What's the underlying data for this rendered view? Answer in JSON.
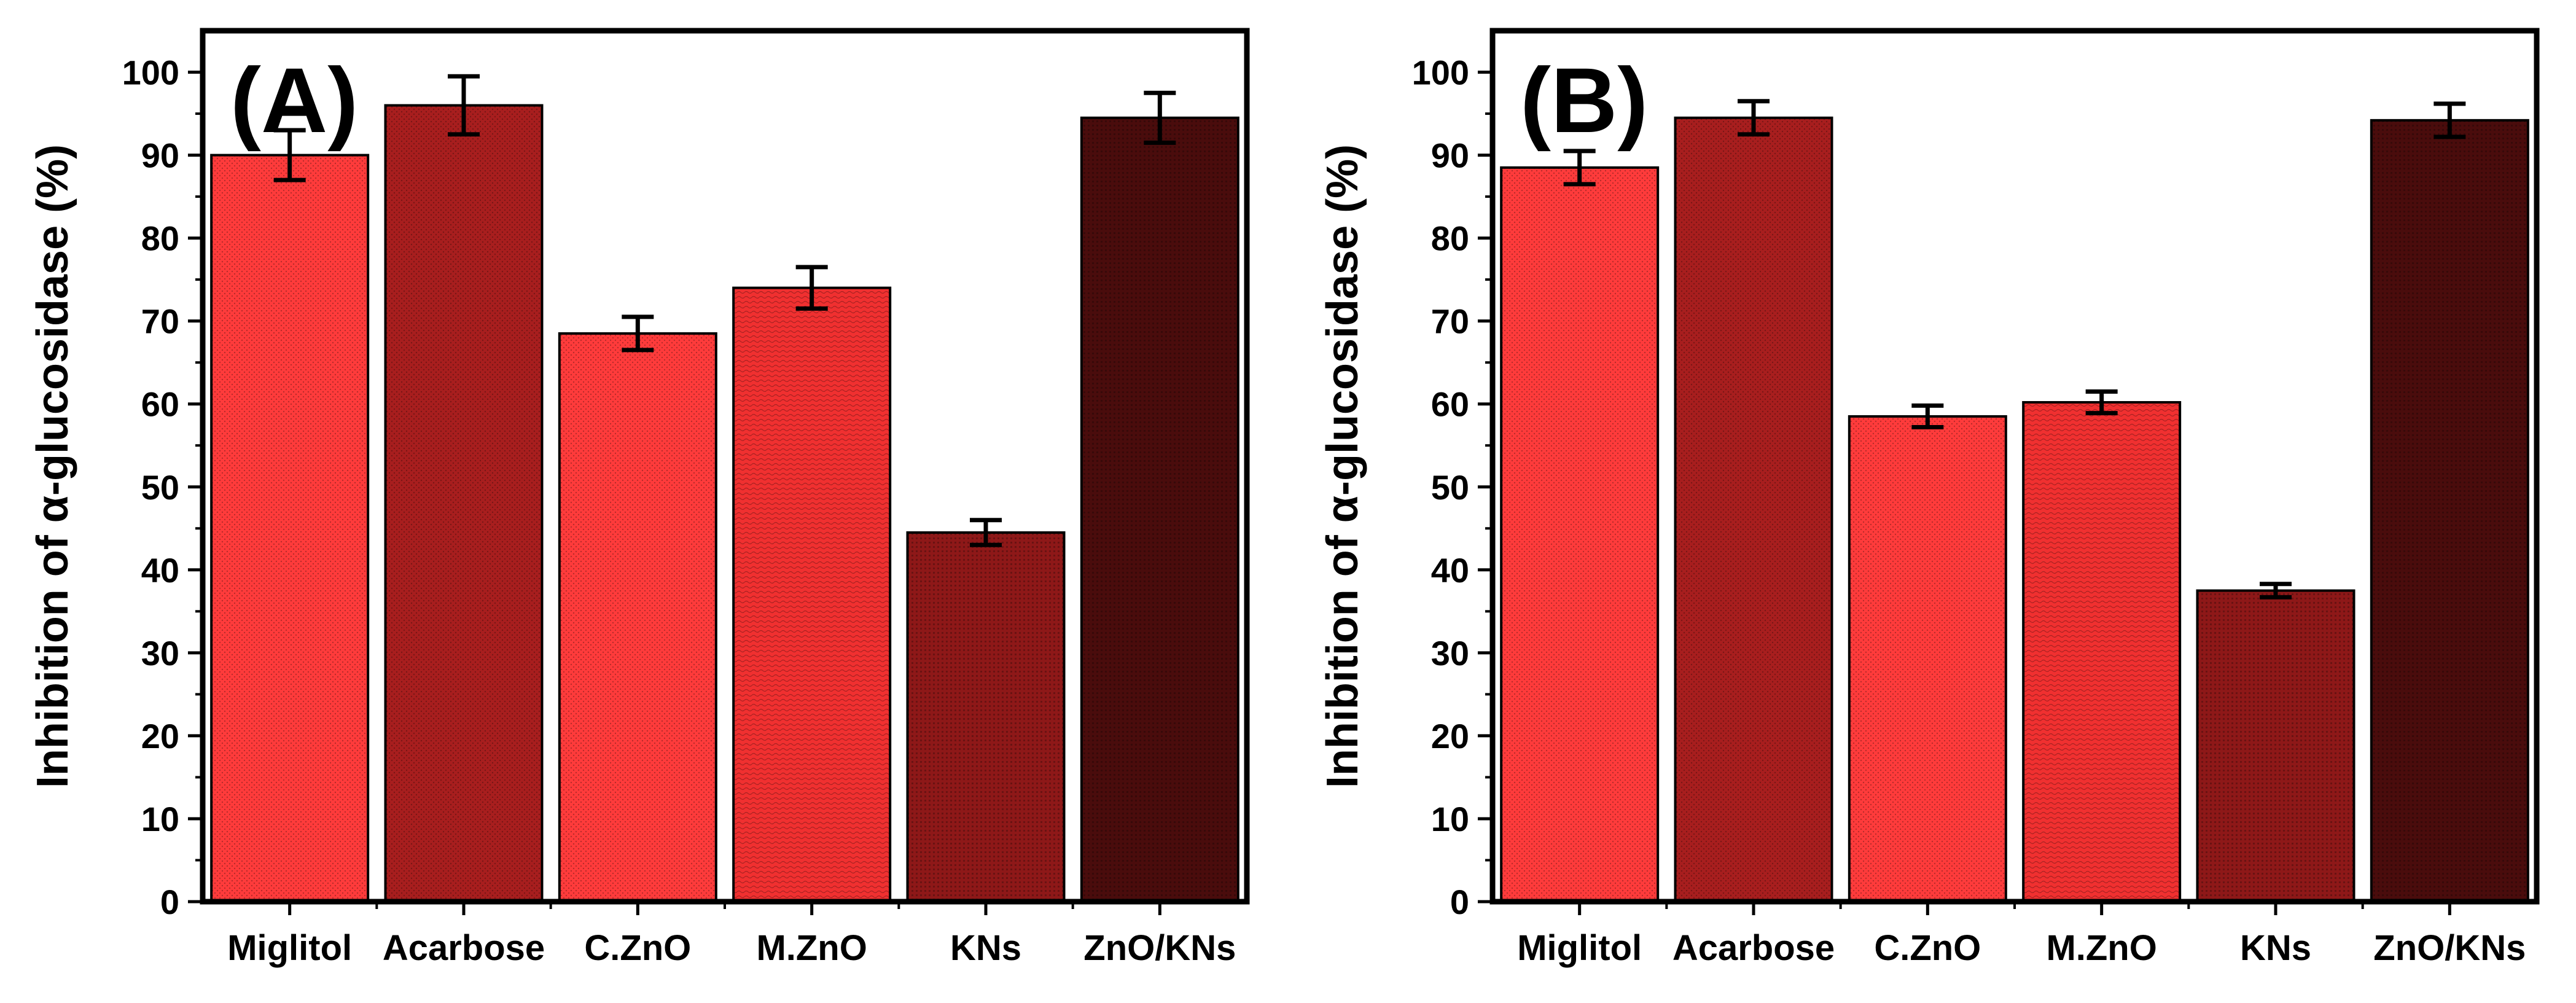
{
  "figure": {
    "description_panels": 2
  },
  "chart_data": [
    {
      "type": "bar",
      "panel_label": "(A)",
      "title": "",
      "xlabel": "",
      "ylabel": "Inhibition of α-glucosidase (%)",
      "ylim": [
        0,
        105
      ],
      "yticks": [
        0,
        10,
        20,
        30,
        40,
        50,
        60,
        70,
        80,
        90,
        100
      ],
      "categories": [
        "Miglitol",
        "Acarbose",
        "C.ZnO",
        "M.ZnO",
        "KNs",
        "ZnO/KNs"
      ],
      "values": [
        90.0,
        96.0,
        68.5,
        74.0,
        44.5,
        94.5
      ],
      "errors": [
        3.0,
        3.5,
        2.0,
        2.5,
        1.5,
        3.0
      ],
      "colors": [
        "#ff3b3b",
        "#a81e1e",
        "#ff3b3b",
        "#f03030",
        "#8e1818",
        "#4a0c0c"
      ],
      "legend": "none",
      "grid": false
    },
    {
      "type": "bar",
      "panel_label": "(B)",
      "title": "",
      "xlabel": "",
      "ylabel": "Inhibition of α-glucosidase (%)",
      "ylim": [
        0,
        105
      ],
      "yticks": [
        0,
        10,
        20,
        30,
        40,
        50,
        60,
        70,
        80,
        90,
        100
      ],
      "categories": [
        "Miglitol",
        "Acarbose",
        "C.ZnO",
        "M.ZnO",
        "KNs",
        "ZnO/KNs"
      ],
      "values": [
        88.5,
        94.5,
        58.5,
        60.2,
        37.5,
        94.2
      ],
      "errors": [
        2.0,
        2.0,
        1.3,
        1.3,
        0.8,
        2.0
      ],
      "colors": [
        "#ff3b3b",
        "#a81e1e",
        "#ff3b3b",
        "#f03030",
        "#8e1818",
        "#4a0c0c"
      ],
      "legend": "none",
      "grid": false
    }
  ]
}
